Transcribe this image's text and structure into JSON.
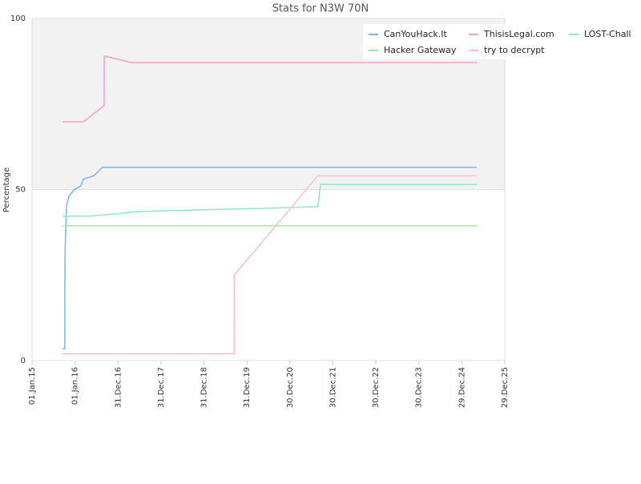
{
  "chart_data": {
    "type": "line",
    "title": "Stats for N3W 70N",
    "y_label": "Percentage",
    "xlim": [
      "2015-01-01",
      "2025-12-29"
    ],
    "xticks": [
      {
        "value": "2015-01-01",
        "label": "01.Jan.15"
      },
      {
        "value": "2016-01-01",
        "label": "01.Jan.16"
      },
      {
        "value": "2016-12-31",
        "label": "31.Dec.16"
      },
      {
        "value": "2017-12-31",
        "label": "31.Dec.17"
      },
      {
        "value": "2018-12-31",
        "label": "31.Dec.18"
      },
      {
        "value": "2019-12-31",
        "label": "31.Dec.19"
      },
      {
        "value": "2020-12-30",
        "label": "30.Dec.20"
      },
      {
        "value": "2021-12-30",
        "label": "30.Dec.21"
      },
      {
        "value": "2022-12-30",
        "label": "30.Dec.22"
      },
      {
        "value": "2023-12-30",
        "label": "30.Dec.23"
      },
      {
        "value": "2024-12-29",
        "label": "29.Dec.24"
      },
      {
        "value": "2025-12-29",
        "label": "29.Dec.25"
      }
    ],
    "ylim": [
      0,
      100
    ],
    "yticks": [
      0,
      50,
      100
    ],
    "plot_bands": [
      {
        "from": 50,
        "to": 100,
        "color": "#f2f2f2"
      }
    ],
    "series": [
      {
        "name": "CanYouHack.It",
        "color": "#7cb5ec",
        "x": [
          "2015-09-16",
          "2015-10-06",
          "2015-10-07",
          "2015-10-20",
          "2015-11-09",
          "2015-12-27",
          "2016-02-19",
          "2016-03-11",
          "2016-04-21",
          "2016-06-08",
          "2016-08-22",
          "2025-05-06"
        ],
        "values": [
          3.5,
          3.5,
          30,
          45,
          48,
          50,
          51,
          53,
          53.5,
          54,
          56.5,
          56.5
        ]
      },
      {
        "name": "ThisisLegal.com",
        "color": "#f7a1c4",
        "x": [
          "2015-09-16",
          "2016-03-11",
          "2016-09-04",
          "2016-09-05",
          "2017-04-30",
          "2025-05-06"
        ],
        "values": [
          69.8,
          69.8,
          74.5,
          89,
          87.1,
          87.1
        ]
      },
      {
        "name": "LOST-Chall",
        "color": "#8ee8cc",
        "x": [
          "2015-09-16",
          "2016-04-21",
          "2017-01-19",
          "2017-06-03",
          "2018-09-24",
          "2020-05-27",
          "2021-08-25",
          "2021-09-16",
          "2025-05-06"
        ],
        "values": [
          42.2,
          42.2,
          43,
          43.5,
          44,
          44.5,
          45,
          51.5,
          51.5
        ]
      },
      {
        "name": "Hacker Gateway",
        "color": "#9ded93",
        "x": [
          "2015-09-16",
          "2025-05-06"
        ],
        "values": [
          39.4,
          39.4
        ]
      },
      {
        "name": "try to decrypt",
        "color": "#ffc0c8",
        "x": [
          "2015-09-16",
          "2019-09-13",
          "2019-09-14",
          "2021-08-25",
          "2025-05-06"
        ],
        "values": [
          2,
          2,
          25,
          54,
          54
        ]
      }
    ]
  }
}
